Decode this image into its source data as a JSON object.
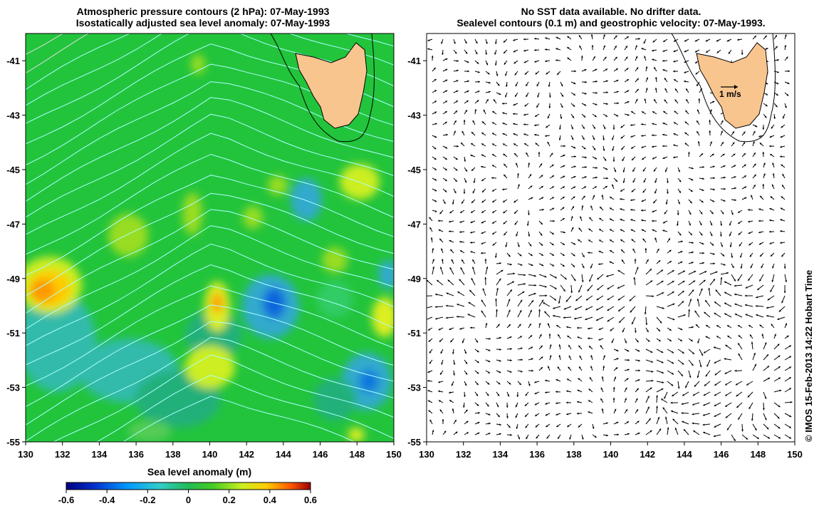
{
  "left_panel": {
    "title_line1": "Atmospheric pressure contours (2 hPa): 07-May-1993",
    "title_line2": "Isostatically adjusted sea level anomaly: 07-May-1993"
  },
  "right_panel": {
    "title_line1": "No SST data available.  No drifter data.",
    "title_line2": "Sealevel contours (0.1 m) and geostrophic velocity: 07-May-1993.",
    "scale_label": "1 m/s"
  },
  "axes": {
    "x_ticks": [
      "130",
      "132",
      "134",
      "136",
      "138",
      "140",
      "142",
      "144",
      "146",
      "148",
      "150"
    ],
    "y_ticks": [
      "-41",
      "-43",
      "-45",
      "-47",
      "-49",
      "-51",
      "-53",
      "-55"
    ],
    "x_range": [
      130,
      150
    ],
    "y_range": [
      -55,
      -40
    ]
  },
  "colorbar": {
    "label": "Sea level anomaly (m)",
    "ticks": [
      "-0.6",
      "-0.4",
      "-0.2",
      "0",
      "0.2",
      "0.4",
      "0.6"
    ],
    "range": [
      -0.6,
      0.6
    ],
    "colors": [
      "#000080",
      "#0033cc",
      "#0099ff",
      "#33cccc",
      "#22bb55",
      "#33cc33",
      "#99ee22",
      "#ffee00",
      "#ff9900",
      "#ee3300",
      "#990000"
    ]
  },
  "credit": "© IMOS 15-Feb-2013 14:22 Hobart Time",
  "colors": {
    "land": "#f9c58f",
    "background_green": "#22c43c",
    "pressure_contour": "#aaffff"
  }
}
